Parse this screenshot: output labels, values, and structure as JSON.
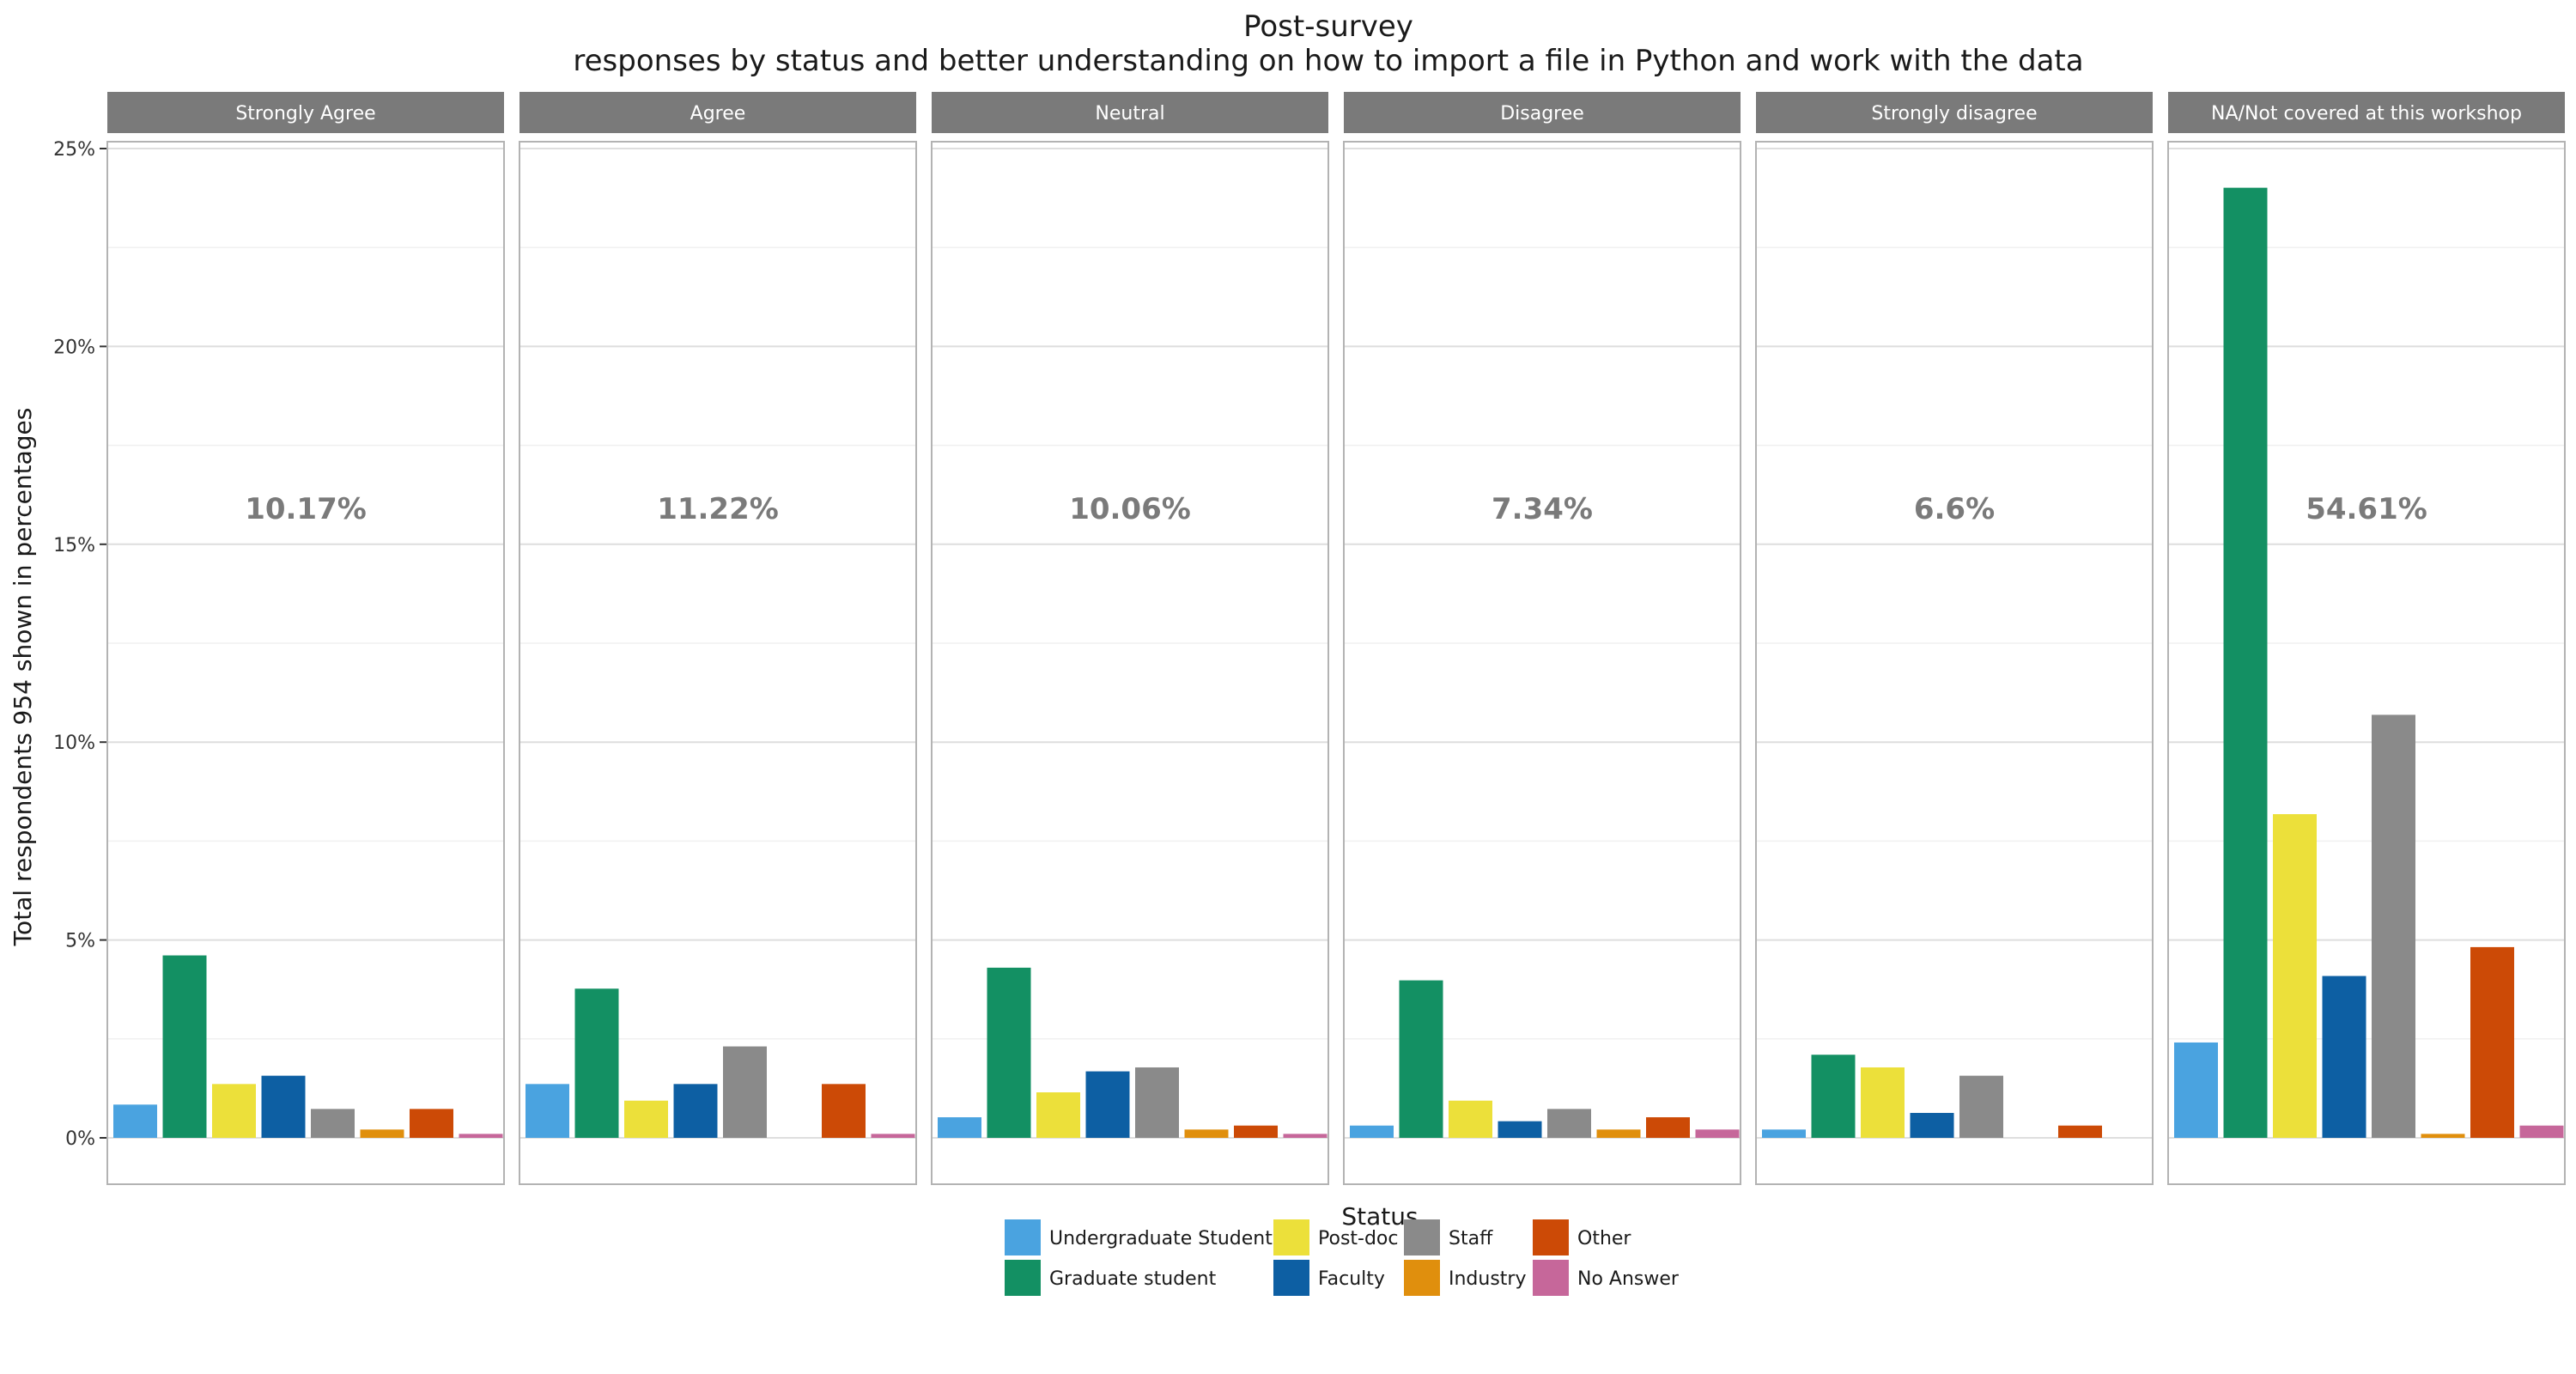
{
  "chart_data": {
    "type": "bar",
    "title": "Post-survey",
    "subtitle": "responses by status and better understanding on how to import a file in Python and work with the data",
    "xlabel": "Status",
    "ylabel": "Total respondents 954 shown in percentages",
    "ylim": [
      0,
      25
    ],
    "yticks": [
      "0%",
      "5%",
      "10%",
      "15%",
      "20%",
      "25%"
    ],
    "grid": true,
    "legend_position": "bottom",
    "categories": [
      "Undergraduate Student",
      "Graduate student",
      "Post-doc",
      "Faculty",
      "Staff",
      "Industry",
      "Other",
      "No Answer"
    ],
    "colors": {
      "Undergraduate Student": "#4aa3e0",
      "Graduate student": "#139063",
      "Post-doc": "#ece03a",
      "Faculty": "#0d5fa3",
      "Staff": "#8a8a8a",
      "Industry": "#e08f0d",
      "Other": "#cc4a06",
      "No Answer": "#c6679a"
    },
    "legend_order": [
      "Undergraduate Student",
      "Graduate student",
      "Post-doc",
      "Faculty",
      "Staff",
      "Industry",
      "Other",
      "No Answer"
    ],
    "panels": [
      {
        "name": "Strongly Agree",
        "total_label": "10.17%",
        "values": [
          0.84,
          4.61,
          1.36,
          1.57,
          0.73,
          0.21,
          0.73,
          0.1
        ]
      },
      {
        "name": "Agree",
        "total_label": "11.22%",
        "values": [
          1.36,
          3.77,
          0.94,
          1.36,
          2.31,
          0,
          1.36,
          0.1
        ]
      },
      {
        "name": "Neutral",
        "total_label": "10.06%",
        "values": [
          0.52,
          4.3,
          1.15,
          1.68,
          1.78,
          0.21,
          0.31,
          0.1
        ]
      },
      {
        "name": "Disagree",
        "total_label": "7.34%",
        "values": [
          0.31,
          3.98,
          0.94,
          0.42,
          0.73,
          0.21,
          0.52,
          0.21
        ]
      },
      {
        "name": "Strongly disagree",
        "total_label": "6.6%",
        "values": [
          0.21,
          2.1,
          1.78,
          0.63,
          1.57,
          0,
          0.31,
          0
        ]
      },
      {
        "name": "NA/Not covered at this workshop",
        "total_label": "54.61%",
        "values": [
          2.41,
          24.01,
          8.18,
          4.09,
          10.69,
          0.1,
          4.82,
          0.31
        ]
      }
    ]
  }
}
